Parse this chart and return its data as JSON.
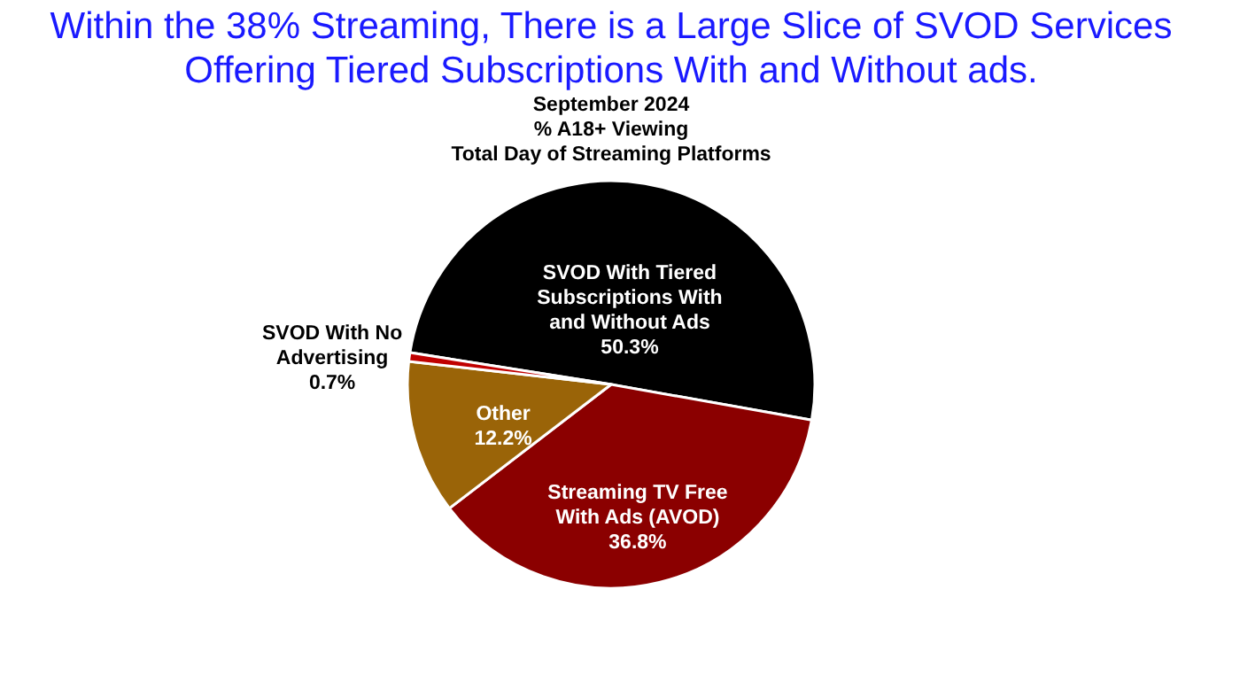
{
  "chart_data": {
    "type": "pie",
    "title": [
      "Within the 38% Streaming, There is a Large Slice of SVOD Services",
      "Offering Tiered Subscriptions With and Without ads."
    ],
    "subtitle": [
      "September 2024",
      "% A18+ Viewing",
      "Total Day of Streaming Platforms"
    ],
    "categories": [
      "SVOD With Tiered Subscriptions With and Without Ads",
      "Streaming TV Free With Ads (AVOD)",
      "Other",
      "SVOD With No Advertising"
    ],
    "values": [
      50.3,
      36.8,
      12.2,
      0.7
    ],
    "colors": [
      "#000000",
      "#8b0000",
      "#9a6408",
      "#c00000"
    ],
    "value_labels": [
      "50.3%",
      "36.8%",
      "12.2%",
      "0.7%"
    ],
    "legend": false
  }
}
